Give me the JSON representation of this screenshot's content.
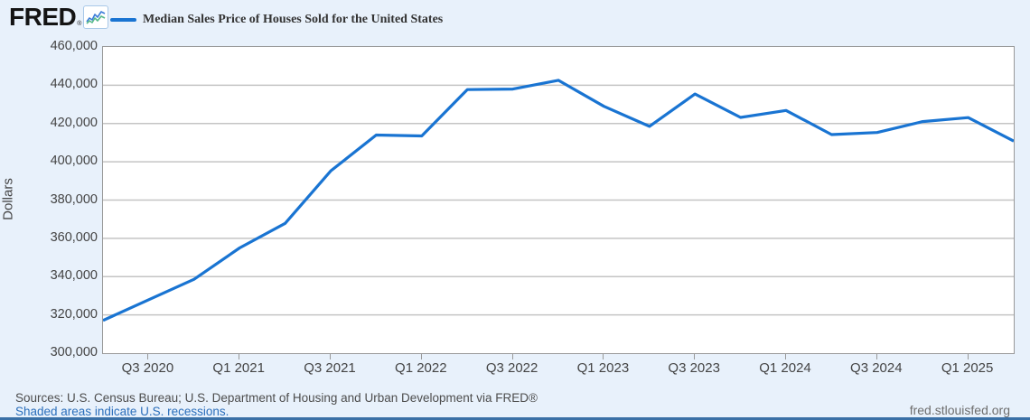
{
  "header": {
    "logo_text": "FRED",
    "logo_registered": "®",
    "legend": {
      "series_label": "Median Sales Price of Houses Sold for the United States"
    }
  },
  "chart_data": {
    "type": "line",
    "title": "Median Sales Price of Houses Sold for the United States",
    "xlabel": "",
    "ylabel": "Dollars",
    "ylim": [
      300000,
      460000
    ],
    "y_tick_step": 20000,
    "grid": true,
    "legend_position": "top-left",
    "line_color": "#1974d2",
    "grid_color": "#c4c4c4",
    "categories": [
      "Q2 2020",
      "Q3 2020",
      "Q4 2020",
      "Q1 2021",
      "Q2 2021",
      "Q3 2021",
      "Q4 2021",
      "Q1 2022",
      "Q2 2022",
      "Q3 2022",
      "Q4 2022",
      "Q1 2023",
      "Q2 2023",
      "Q3 2023",
      "Q4 2023",
      "Q1 2024",
      "Q2 2024",
      "Q3 2024",
      "Q4 2024",
      "Q1 2025",
      "Q2 2025"
    ],
    "values": [
      317100,
      327900,
      338600,
      355000,
      367800,
      395200,
      414000,
      413500,
      437700,
      438000,
      442600,
      429000,
      418500,
      435400,
      423200,
      426800,
      414200,
      415300,
      421000,
      423100,
      410800
    ],
    "x_tick_indices": [
      1,
      3,
      5,
      7,
      9,
      11,
      13,
      15,
      17,
      19
    ]
  },
  "footer": {
    "sources": "Sources: U.S. Census Bureau; U.S. Department of Housing and Urban Development via FRED®",
    "recessions_note": "Shaded areas indicate U.S. recessions.",
    "site_link": "fred.stlouisfed.org"
  }
}
